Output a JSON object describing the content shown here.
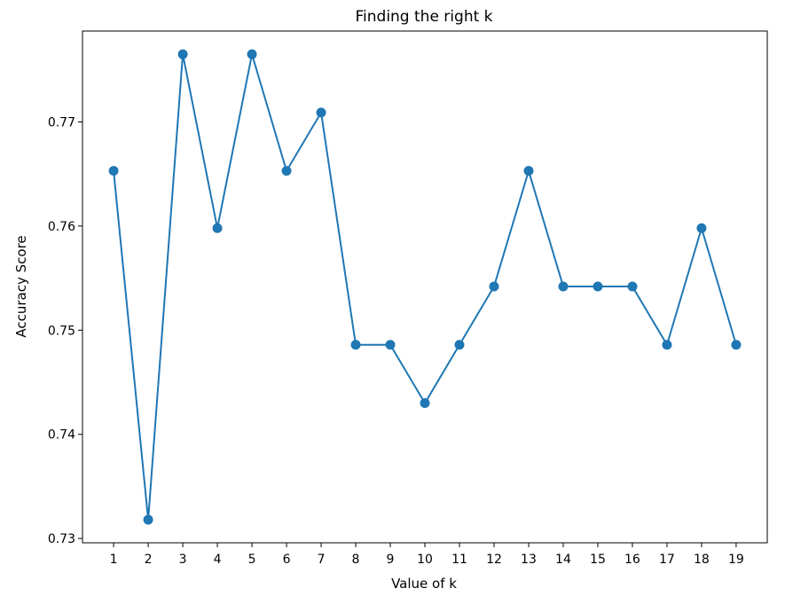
{
  "chart_data": {
    "type": "line",
    "title": "Finding the right k",
    "xlabel": "Value of k",
    "ylabel": "Accuracy Score",
    "x": [
      1,
      2,
      3,
      4,
      5,
      6,
      7,
      8,
      9,
      10,
      11,
      12,
      13,
      14,
      15,
      16,
      17,
      18,
      19
    ],
    "series": [
      {
        "values": [
          0.7653,
          0.7318,
          0.7765,
          0.7598,
          0.7765,
          0.7653,
          0.7709,
          0.7486,
          0.7486,
          0.743,
          0.7486,
          0.7542,
          0.7653,
          0.7542,
          0.7542,
          0.7542,
          0.7486,
          0.7598,
          0.7486
        ],
        "color": "#1f77b4",
        "marker": "circle"
      }
    ],
    "xticks": [
      "1",
      "2",
      "3",
      "4",
      "5",
      "6",
      "7",
      "8",
      "9",
      "10",
      "11",
      "12",
      "13",
      "14",
      "15",
      "16",
      "17",
      "18",
      "19"
    ],
    "yticks": [
      "0.73",
      "0.74",
      "0.75",
      "0.76",
      "0.77"
    ],
    "ytick_values": [
      0.73,
      0.74,
      0.75,
      0.76,
      0.77
    ],
    "xlim": [
      0.1,
      19.9
    ],
    "ylim": [
      0.72958,
      0.77873
    ],
    "grid": false,
    "legend": false
  }
}
